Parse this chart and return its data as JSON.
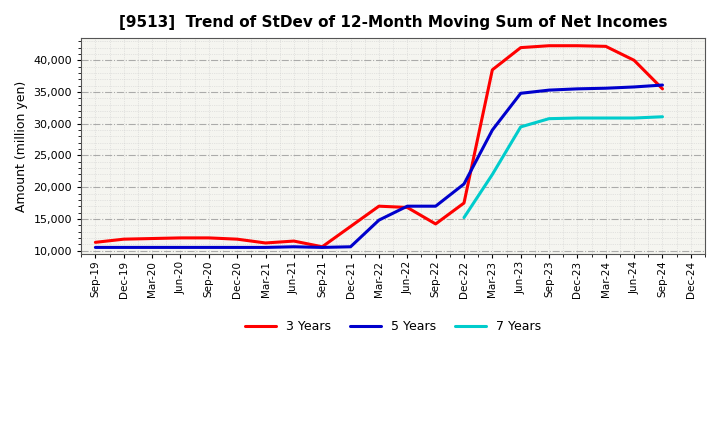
{
  "title": "[9513]  Trend of StDev of 12-Month Moving Sum of Net Incomes",
  "ylabel": "Amount (million yen)",
  "background_color": "#ffffff",
  "plot_bg_color": "#f5f5f0",
  "grid_color_major": "#999999",
  "grid_color_minor": "#cccccc",
  "x_labels": [
    "Sep-19",
    "Dec-19",
    "Mar-20",
    "Jun-20",
    "Sep-20",
    "Dec-20",
    "Mar-21",
    "Jun-21",
    "Sep-21",
    "Dec-21",
    "Mar-22",
    "Jun-22",
    "Sep-22",
    "Dec-22",
    "Mar-23",
    "Jun-23",
    "Sep-23",
    "Dec-23",
    "Mar-24",
    "Jun-24",
    "Sep-24",
    "Dec-24"
  ],
  "ylim": [
    9500,
    43500
  ],
  "yticks": [
    10000,
    15000,
    20000,
    25000,
    30000,
    35000,
    40000
  ],
  "series": {
    "3 Years": {
      "color": "#ff0000",
      "values": [
        11300,
        11800,
        11900,
        12000,
        12000,
        11800,
        11200,
        11500,
        10600,
        13800,
        17000,
        16800,
        14200,
        17500,
        38500,
        42000,
        42300,
        42300,
        42200,
        40000,
        35500,
        null
      ]
    },
    "5 Years": {
      "color": "#0000cc",
      "values": [
        10500,
        10500,
        10500,
        10500,
        10500,
        10500,
        10500,
        10600,
        10500,
        10600,
        14800,
        17000,
        17000,
        20500,
        29000,
        34800,
        35300,
        35500,
        35600,
        35800,
        36100,
        null
      ]
    },
    "7 Years": {
      "color": "#00cccc",
      "values": [
        null,
        null,
        null,
        null,
        null,
        null,
        null,
        null,
        null,
        null,
        null,
        null,
        null,
        15200,
        22000,
        29500,
        30800,
        30900,
        30900,
        30900,
        31100,
        null
      ]
    },
    "10 Years": {
      "color": "#008800",
      "values": [
        null,
        null,
        null,
        null,
        null,
        null,
        null,
        null,
        null,
        null,
        null,
        null,
        null,
        null,
        null,
        null,
        null,
        null,
        null,
        null,
        null,
        null
      ]
    }
  }
}
